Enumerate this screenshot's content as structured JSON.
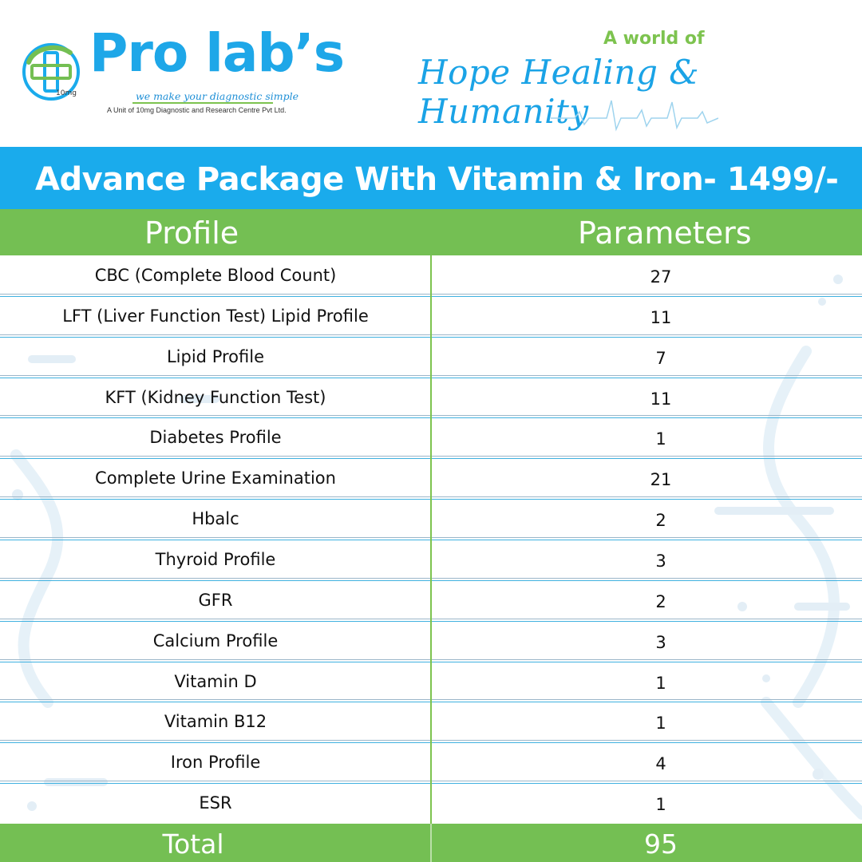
{
  "brand": {
    "name": "Pro lab’s",
    "tagline": "we make your diagnostic simple",
    "unit_line": "A Unit of 10mg Diagnostic and Research Centre Pvt Ltd.",
    "logo_badge": "10mg",
    "slogan_top": "A world of",
    "slogan_script": "Hope Healing & Humanity",
    "colors": {
      "blue": "#1aabec",
      "green": "#74bf53"
    }
  },
  "title": "Advance Package With Vitamin & Iron- 1499/-",
  "table": {
    "headers": {
      "profile": "Profile",
      "parameters": "Parameters"
    },
    "rows": [
      {
        "profile": "CBC (Complete Blood Count)",
        "parameters": "27"
      },
      {
        "profile": "LFT (Liver Function Test) Lipid Profile",
        "parameters": "11"
      },
      {
        "profile": "Lipid Profile",
        "parameters": "7"
      },
      {
        "profile": "KFT (Kidney Function Test)",
        "parameters": "11"
      },
      {
        "profile": "Diabetes Profile",
        "parameters": "1"
      },
      {
        "profile": "Complete Urine Examination",
        "parameters": "21"
      },
      {
        "profile": "Hbalc",
        "parameters": "2"
      },
      {
        "profile": "Thyroid Profile",
        "parameters": "3"
      },
      {
        "profile": "GFR",
        "parameters": "2"
      },
      {
        "profile": "Calcium Profile",
        "parameters": "3"
      },
      {
        "profile": "Vitamin D",
        "parameters": "1"
      },
      {
        "profile": "Vitamin B12",
        "parameters": "1"
      },
      {
        "profile": "Iron Profile",
        "parameters": "4"
      },
      {
        "profile": "ESR",
        "parameters": "1"
      }
    ],
    "total": {
      "label": "Total",
      "value": "95"
    }
  }
}
